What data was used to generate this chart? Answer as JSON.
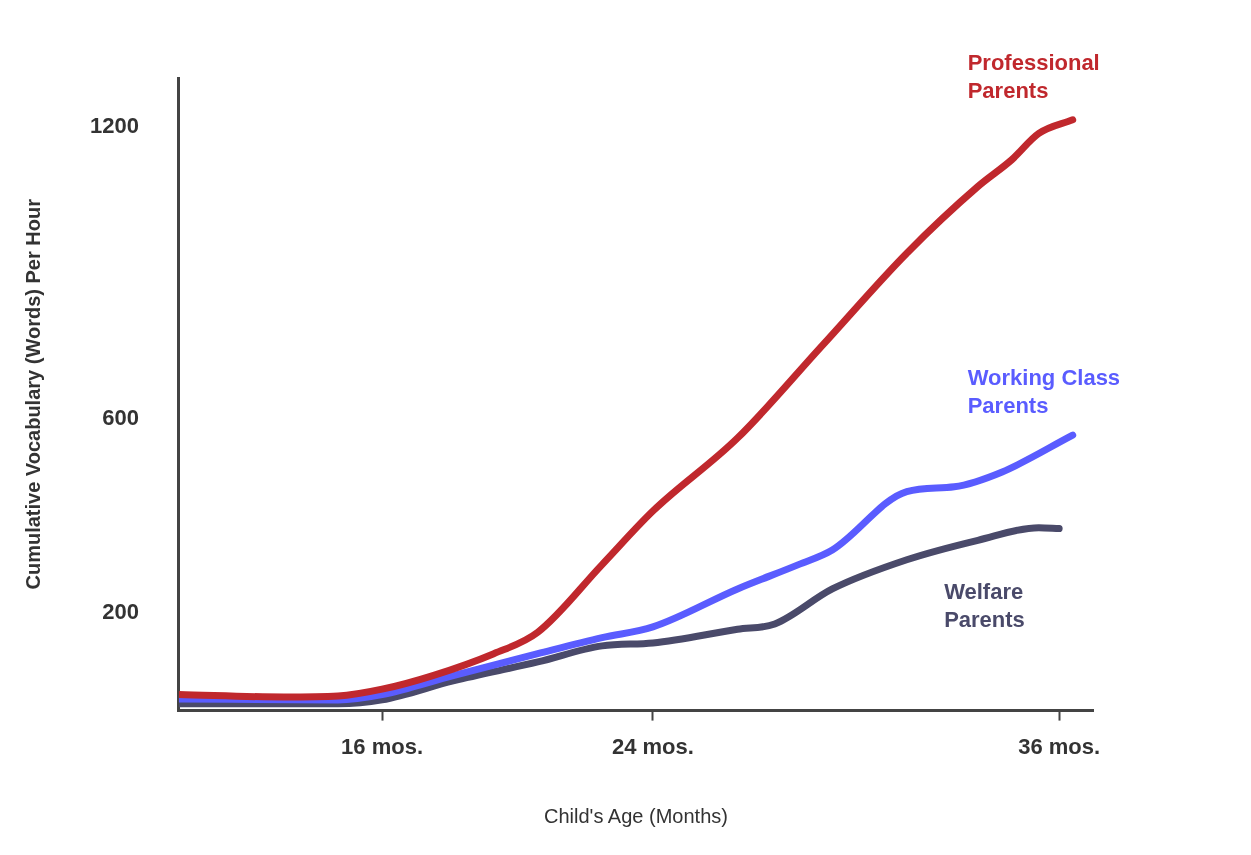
{
  "chart_data": {
    "type": "line",
    "xlabel": "Child's Age (Months)",
    "ylabel": "Cumulative Vocabulary (Words) Per Hour",
    "xlim": [
      10,
      37
    ],
    "xticks": [
      {
        "value": 16,
        "label": "16 mos."
      },
      {
        "value": 24,
        "label": "24 mos."
      },
      {
        "value": 36,
        "label": "36 mos."
      }
    ],
    "ylim": [
      0,
      1300
    ],
    "yticks": [
      200,
      600,
      1200
    ],
    "grid": false,
    "legend": false,
    "marker": "none",
    "line_style": "solid",
    "series": [
      {
        "name": "Professional Parents",
        "color": "#c0282d",
        "x": [
          10,
          13.1,
          14.7,
          16,
          17.5,
          19.3,
          20.6,
          22.5,
          24,
          26.5,
          29,
          31.5,
          33.6,
          34.6,
          35.4,
          36.4
        ],
        "values": [
          33,
          28,
          30,
          44,
          72,
          117,
          161,
          300,
          410,
          560,
          750,
          940,
          1077,
          1132,
          1186,
          1214
        ]
      },
      {
        "name": "Working Class Parents",
        "color": "#5a5cff",
        "x": [
          10,
          14.7,
          16,
          18.1,
          20.6,
          22.5,
          24,
          26.5,
          28.3,
          29.3,
          31.5,
          32.9,
          34.3,
          36.4
        ],
        "values": [
          24,
          22,
          33,
          72,
          117,
          150,
          172,
          250,
          300,
          330,
          450,
          460,
          490,
          566
        ]
      },
      {
        "name": "Welfare Parents",
        "color": "#4a4a6a",
        "x": [
          10,
          14.7,
          16,
          18.1,
          20.6,
          22.5,
          24,
          26.5,
          27.6,
          29.3,
          31.5,
          33.6,
          35.4,
          36
        ],
        "values": [
          14,
          14,
          22,
          61,
          100,
          133,
          139,
          167,
          178,
          250,
          310,
          350,
          376,
          374
        ]
      }
    ]
  }
}
